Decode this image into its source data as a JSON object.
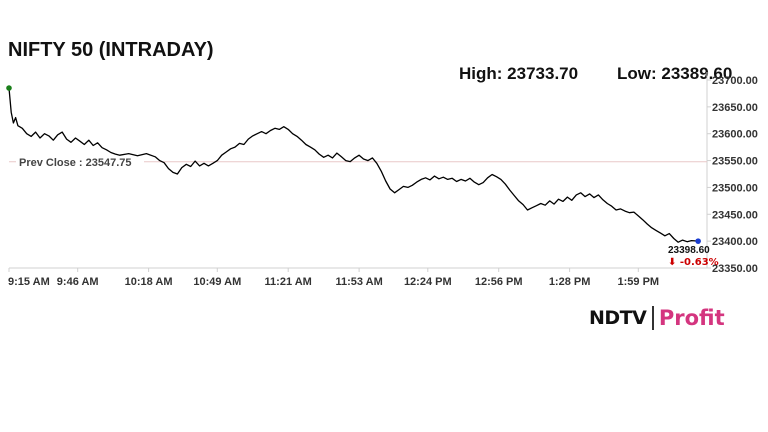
{
  "header": {
    "title": "NIFTY 50 (INTRADAY)",
    "high_label": "High:",
    "high_value": "23733.70",
    "low_label": "Low:",
    "low_value": "23389.60"
  },
  "logo": {
    "part1": "NDTV",
    "part2": "Profit",
    "accent_color": "#d4357f"
  },
  "chart_data": {
    "type": "line",
    "title": "NIFTY 50 (INTRADAY)",
    "x_ticks": [
      "9:15 AM",
      "9:46 AM",
      "10:18 AM",
      "10:49 AM",
      "11:21 AM",
      "11:53 AM",
      "12:24 PM",
      "12:56 PM",
      "1:28 PM",
      "1:59 PM"
    ],
    "y_ticks": [
      "23700.00",
      "23650.00",
      "23600.00",
      "23550.00",
      "23500.00",
      "23450.00",
      "23400.00",
      "23350.00"
    ],
    "y_tick_values": [
      23700,
      23650,
      23600,
      23550,
      23500,
      23450,
      23400,
      23350
    ],
    "ylim": [
      23350,
      23700
    ],
    "xlim_minutes": [
      0,
      315
    ],
    "x_tick_minutes": [
      0,
      31,
      63,
      94,
      126,
      158,
      189,
      221,
      253,
      284
    ],
    "series": [
      {
        "color": "#000000",
        "points": [
          [
            0,
            23685
          ],
          [
            1,
            23640
          ],
          [
            2,
            23620
          ],
          [
            3,
            23630
          ],
          [
            4,
            23615
          ],
          [
            6,
            23610
          ],
          [
            8,
            23600
          ],
          [
            10,
            23595
          ],
          [
            12,
            23603
          ],
          [
            14,
            23592
          ],
          [
            16,
            23600
          ],
          [
            18,
            23596
          ],
          [
            20,
            23588
          ],
          [
            22,
            23598
          ],
          [
            24,
            23603
          ],
          [
            26,
            23590
          ],
          [
            28,
            23584
          ],
          [
            30,
            23592
          ],
          [
            32,
            23586
          ],
          [
            34,
            23580
          ],
          [
            36,
            23588
          ],
          [
            38,
            23578
          ],
          [
            40,
            23583
          ],
          [
            42,
            23574
          ],
          [
            44,
            23570
          ],
          [
            46,
            23565
          ],
          [
            48,
            23562
          ],
          [
            50,
            23560
          ],
          [
            54,
            23563
          ],
          [
            58,
            23559
          ],
          [
            62,
            23563
          ],
          [
            66,
            23557
          ],
          [
            68,
            23550
          ],
          [
            70,
            23546
          ],
          [
            72,
            23535
          ],
          [
            74,
            23528
          ],
          [
            76,
            23525
          ],
          [
            78,
            23537
          ],
          [
            80,
            23543
          ],
          [
            82,
            23539
          ],
          [
            84,
            23549
          ],
          [
            86,
            23540
          ],
          [
            88,
            23545
          ],
          [
            90,
            23540
          ],
          [
            92,
            23545
          ],
          [
            94,
            23550
          ],
          [
            96,
            23560
          ],
          [
            98,
            23566
          ],
          [
            100,
            23572
          ],
          [
            102,
            23575
          ],
          [
            104,
            23582
          ],
          [
            106,
            23580
          ],
          [
            108,
            23590
          ],
          [
            110,
            23596
          ],
          [
            112,
            23600
          ],
          [
            114,
            23604
          ],
          [
            116,
            23600
          ],
          [
            118,
            23606
          ],
          [
            120,
            23610
          ],
          [
            122,
            23608
          ],
          [
            124,
            23613
          ],
          [
            126,
            23608
          ],
          [
            128,
            23600
          ],
          [
            130,
            23595
          ],
          [
            132,
            23588
          ],
          [
            134,
            23580
          ],
          [
            136,
            23575
          ],
          [
            138,
            23570
          ],
          [
            140,
            23562
          ],
          [
            142,
            23556
          ],
          [
            144,
            23560
          ],
          [
            146,
            23555
          ],
          [
            148,
            23564
          ],
          [
            150,
            23557
          ],
          [
            152,
            23550
          ],
          [
            154,
            23548
          ],
          [
            156,
            23555
          ],
          [
            158,
            23560
          ],
          [
            160,
            23553
          ],
          [
            162,
            23550
          ],
          [
            164,
            23555
          ],
          [
            166,
            23545
          ],
          [
            168,
            23530
          ],
          [
            170,
            23512
          ],
          [
            172,
            23497
          ],
          [
            174,
            23490
          ],
          [
            176,
            23496
          ],
          [
            178,
            23502
          ],
          [
            180,
            23500
          ],
          [
            182,
            23504
          ],
          [
            184,
            23510
          ],
          [
            186,
            23515
          ],
          [
            188,
            23518
          ],
          [
            190,
            23514
          ],
          [
            192,
            23521
          ],
          [
            194,
            23516
          ],
          [
            196,
            23519
          ],
          [
            198,
            23515
          ],
          [
            200,
            23517
          ],
          [
            202,
            23511
          ],
          [
            204,
            23515
          ],
          [
            206,
            23512
          ],
          [
            208,
            23517
          ],
          [
            210,
            23510
          ],
          [
            212,
            23505
          ],
          [
            214,
            23509
          ],
          [
            216,
            23518
          ],
          [
            218,
            23524
          ],
          [
            220,
            23520
          ],
          [
            222,
            23515
          ],
          [
            224,
            23506
          ],
          [
            226,
            23495
          ],
          [
            228,
            23485
          ],
          [
            230,
            23475
          ],
          [
            232,
            23468
          ],
          [
            234,
            23458
          ],
          [
            236,
            23462
          ],
          [
            238,
            23466
          ],
          [
            240,
            23470
          ],
          [
            242,
            23467
          ],
          [
            244,
            23475
          ],
          [
            246,
            23469
          ],
          [
            248,
            23478
          ],
          [
            250,
            23474
          ],
          [
            252,
            23482
          ],
          [
            254,
            23476
          ],
          [
            256,
            23486
          ],
          [
            258,
            23490
          ],
          [
            260,
            23483
          ],
          [
            262,
            23488
          ],
          [
            264,
            23481
          ],
          [
            266,
            23486
          ],
          [
            268,
            23477
          ],
          [
            270,
            23470
          ],
          [
            272,
            23465
          ],
          [
            274,
            23458
          ],
          [
            276,
            23460
          ],
          [
            278,
            23456
          ],
          [
            280,
            23453
          ],
          [
            282,
            23454
          ],
          [
            284,
            23447
          ],
          [
            286,
            23440
          ],
          [
            288,
            23432
          ],
          [
            290,
            23425
          ],
          [
            292,
            23420
          ],
          [
            294,
            23415
          ],
          [
            296,
            23410
          ],
          [
            298,
            23414
          ],
          [
            300,
            23405
          ],
          [
            302,
            23398
          ],
          [
            304,
            23402
          ],
          [
            306,
            23399
          ],
          [
            308,
            23401
          ],
          [
            311,
            23400
          ]
        ]
      }
    ],
    "prev_close": {
      "label": "Prev Close : 23547.75",
      "value": 23547.75,
      "color": "#e9c8c8"
    },
    "last_price": {
      "label": "23398.60",
      "change": "⬇ -0.63%",
      "change_color": "#cc0000"
    },
    "start_marker_color": "#1a7f1a",
    "end_marker_color": "#1a3dd1",
    "axis_color": "#d0d0d0",
    "grid": false
  }
}
